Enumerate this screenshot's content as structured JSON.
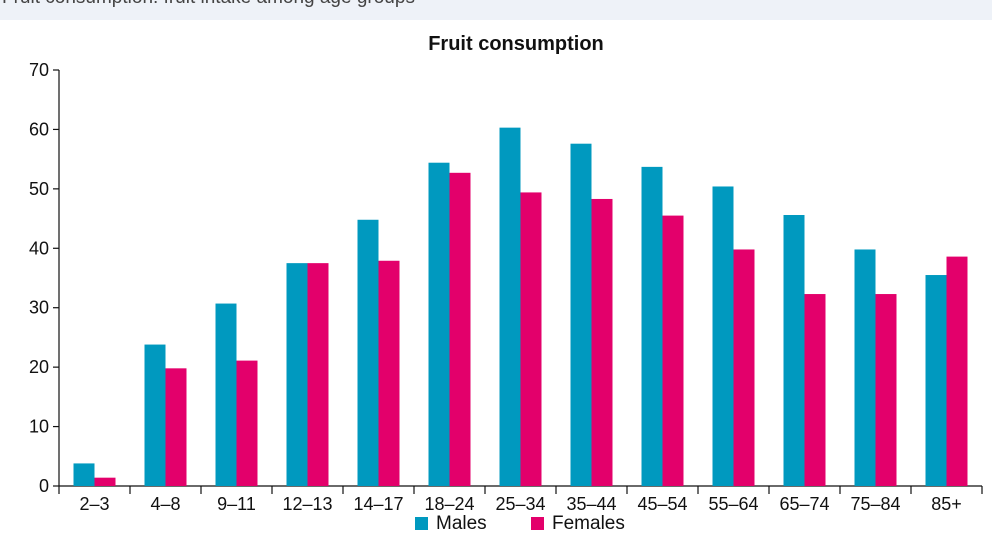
{
  "caption_fragment": "Fruit consumption: fruit intake among age groups",
  "colors": {
    "males": "#0099bf",
    "females": "#e3006b",
    "axis": "#111111"
  },
  "chart_data": {
    "type": "bar",
    "title": "Fruit consumption",
    "xlabel": "",
    "ylabel": "",
    "ylim": [
      0,
      70
    ],
    "yticks": [
      0,
      10,
      20,
      30,
      40,
      50,
      60,
      70
    ],
    "grid": false,
    "legend_position": "bottom",
    "categories": [
      "2–3",
      "4–8",
      "9–11",
      "12–13",
      "14–17",
      "18–24",
      "25–34",
      "35–44",
      "45–54",
      "55–64",
      "65–74",
      "75–84",
      "85+"
    ],
    "series": [
      {
        "name": "Males",
        "values": [
          3.8,
          23.8,
          30.7,
          37.5,
          44.8,
          54.4,
          60.3,
          57.6,
          53.7,
          50.4,
          45.6,
          39.8,
          35.5
        ]
      },
      {
        "name": "Females",
        "values": [
          1.4,
          19.8,
          21.1,
          37.5,
          37.9,
          52.7,
          49.4,
          48.3,
          45.5,
          39.8,
          32.3,
          32.3,
          38.6
        ]
      }
    ]
  }
}
